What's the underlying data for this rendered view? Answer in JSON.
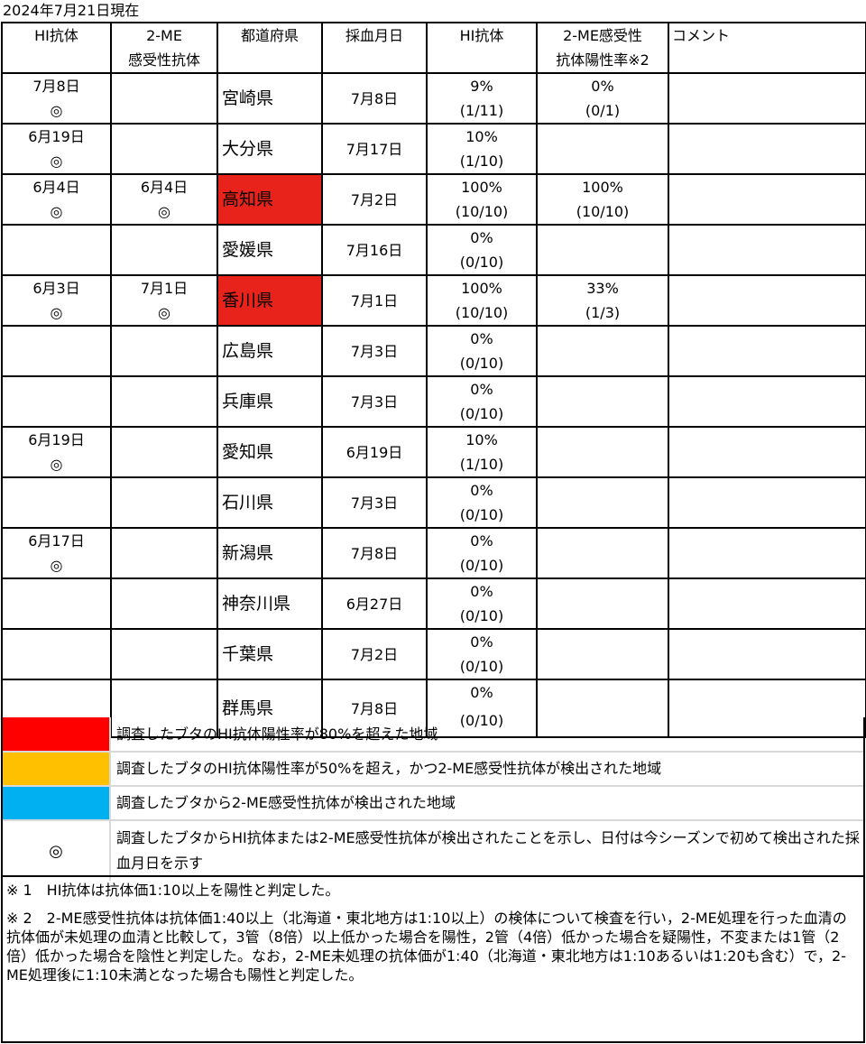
{
  "as_of": "2024年7月21日現在",
  "headers": [
    "HI抗体",
    "2-ME\n感受性抗体",
    "都道府県",
    "採血月日",
    "HI抗体",
    "2-ME感受性\n抗体陽性率※2",
    "コメント"
  ],
  "colors": {
    "highlight_red": "#e8231b",
    "legend_red": "#ff0000",
    "legend_orange": "#ffc000",
    "legend_blue": "#00b0f0"
  },
  "rows": [
    {
      "hi_first": "7月8日",
      "hi_mark": "◎",
      "me_first": "",
      "me_mark": "",
      "prefecture": "宮崎県",
      "highlight": "",
      "sample_date": "7月8日",
      "hi_rate": "9%",
      "hi_ratio": "(1/11)",
      "me_rate": "0%",
      "me_ratio": "(0/1)",
      "comment": ""
    },
    {
      "hi_first": "6月19日",
      "hi_mark": "◎",
      "me_first": "",
      "me_mark": "",
      "prefecture": "大分県",
      "highlight": "",
      "sample_date": "7月17日",
      "hi_rate": "10%",
      "hi_ratio": "(1/10)",
      "me_rate": "",
      "me_ratio": "",
      "comment": ""
    },
    {
      "hi_first": "6月4日",
      "hi_mark": "◎",
      "me_first": "6月4日",
      "me_mark": "◎",
      "prefecture": "高知県",
      "highlight": "red",
      "sample_date": "7月2日",
      "hi_rate": "100%",
      "hi_ratio": "(10/10)",
      "me_rate": "100%",
      "me_ratio": "(10/10)",
      "comment": ""
    },
    {
      "hi_first": "",
      "hi_mark": "",
      "me_first": "",
      "me_mark": "",
      "prefecture": "愛媛県",
      "highlight": "",
      "sample_date": "7月16日",
      "hi_rate": "0%",
      "hi_ratio": "(0/10)",
      "me_rate": "",
      "me_ratio": "",
      "comment": ""
    },
    {
      "hi_first": "6月3日",
      "hi_mark": "◎",
      "me_first": "7月1日",
      "me_mark": "◎",
      "prefecture": "香川県",
      "highlight": "red",
      "sample_date": "7月1日",
      "hi_rate": "100%",
      "hi_ratio": "(10/10)",
      "me_rate": "33%",
      "me_ratio": "(1/3)",
      "comment": ""
    },
    {
      "hi_first": "",
      "hi_mark": "",
      "me_first": "",
      "me_mark": "",
      "prefecture": "広島県",
      "highlight": "",
      "sample_date": "7月3日",
      "hi_rate": "0%",
      "hi_ratio": "(0/10)",
      "me_rate": "",
      "me_ratio": "",
      "comment": ""
    },
    {
      "hi_first": "",
      "hi_mark": "",
      "me_first": "",
      "me_mark": "",
      "prefecture": "兵庫県",
      "highlight": "",
      "sample_date": "7月3日",
      "hi_rate": "0%",
      "hi_ratio": "(0/10)",
      "me_rate": "",
      "me_ratio": "",
      "comment": ""
    },
    {
      "hi_first": "6月19日",
      "hi_mark": "◎",
      "me_first": "",
      "me_mark": "",
      "prefecture": "愛知県",
      "highlight": "",
      "sample_date": "6月19日",
      "hi_rate": "10%",
      "hi_ratio": "(1/10)",
      "me_rate": "",
      "me_ratio": "",
      "comment": ""
    },
    {
      "hi_first": "",
      "hi_mark": "",
      "me_first": "",
      "me_mark": "",
      "prefecture": "石川県",
      "highlight": "",
      "sample_date": "7月3日",
      "hi_rate": "0%",
      "hi_ratio": "(0/10)",
      "me_rate": "",
      "me_ratio": "",
      "comment": ""
    },
    {
      "hi_first": "6月17日",
      "hi_mark": "◎",
      "me_first": "",
      "me_mark": "",
      "prefecture": "新潟県",
      "highlight": "",
      "sample_date": "7月8日",
      "hi_rate": "0%",
      "hi_ratio": "(0/10)",
      "me_rate": "",
      "me_ratio": "",
      "comment": ""
    },
    {
      "hi_first": "",
      "hi_mark": "",
      "me_first": "",
      "me_mark": "",
      "prefecture": "神奈川県",
      "highlight": "",
      "sample_date": "6月27日",
      "hi_rate": "0%",
      "hi_ratio": "(0/10)",
      "me_rate": "",
      "me_ratio": "",
      "comment": ""
    },
    {
      "hi_first": "",
      "hi_mark": "",
      "me_first": "",
      "me_mark": "",
      "prefecture": "千葉県",
      "highlight": "",
      "sample_date": "7月2日",
      "hi_rate": "0%",
      "hi_ratio": "(0/10)",
      "me_rate": "",
      "me_ratio": "",
      "comment": ""
    },
    {
      "hi_first": "",
      "hi_mark": "",
      "me_first": "",
      "me_mark": "",
      "prefecture": "群馬県",
      "highlight": "",
      "sample_date": "7月8日",
      "hi_rate": "0%",
      "hi_ratio": "(0/10)",
      "me_rate": "",
      "me_ratio": "",
      "comment": ""
    }
  ],
  "legend": [
    {
      "color": "#ff0000",
      "symbol": "",
      "text": "調査したブタのHI抗体陽性率が80%を超えた地域"
    },
    {
      "color": "#ffc000",
      "symbol": "",
      "text": "調査したブタのHI抗体陽性率が50%を超え，かつ2-ME感受性抗体が検出された地域"
    },
    {
      "color": "#00b0f0",
      "symbol": "",
      "text": "調査したブタから2-ME感受性抗体が検出された地域"
    },
    {
      "color": "#ffffff",
      "symbol": "◎",
      "text": "調査したブタからHI抗体または2-ME感受性抗体が検出されたことを示し、日付は今シーズンで初めて検出された採血月日を示す"
    }
  ],
  "notes": [
    "※ 1　HI抗体は抗体価1:10以上を陽性と判定した。",
    "※ 2　2-ME感受性抗体は抗体価1:40以上（北海道・東北地方は1:10以上）の検体について検査を行い，2-ME処理を行った血清の抗体価が未処理の血清と比較して，3管（8倍）以上低かった場合を陽性，2管（4倍）低かった場合を疑陽性，不変または1管（2倍）低かった場合を陰性と判定した。なお，2-ME未処理の抗体価が1:40（北海道・東北地方は1:10あるいは1:20も含む）で，2-ME処理後に1:10未満となった場合も陽性と判定した。"
  ]
}
